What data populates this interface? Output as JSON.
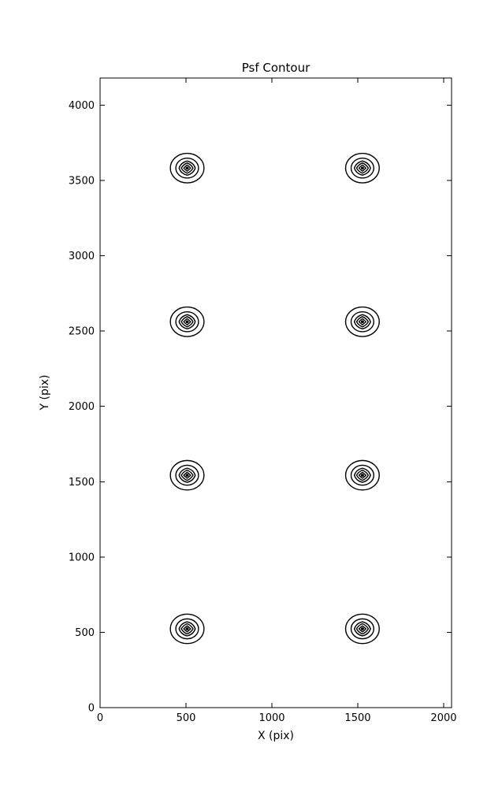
{
  "figure": {
    "background": "#ffffff",
    "line_color": "#000000"
  },
  "chart_data": {
    "type": "contour",
    "title": "Psf Contour",
    "xlabel": "X (pix)",
    "ylabel": "Y (pix)",
    "xlim": [
      0,
      2046
    ],
    "ylim": [
      0,
      4180
    ],
    "x_ticks": [
      0,
      500,
      1000,
      1500,
      2000
    ],
    "y_ticks": [
      0,
      500,
      1000,
      1500,
      2000,
      2500,
      3000,
      3500,
      4000
    ],
    "grid": false,
    "legend": null,
    "psf_centers": [
      {
        "x": 507,
        "y": 523
      },
      {
        "x": 1527,
        "y": 523
      },
      {
        "x": 507,
        "y": 1543
      },
      {
        "x": 1527,
        "y": 1543
      },
      {
        "x": 507,
        "y": 2562
      },
      {
        "x": 1527,
        "y": 2562
      },
      {
        "x": 507,
        "y": 3582
      },
      {
        "x": 1527,
        "y": 3582
      }
    ],
    "contour_ring_radii_pix": [
      98,
      66,
      47,
      34,
      20
    ],
    "contour_center_dot_radius_pix": 7,
    "contour_color": "#000000"
  }
}
